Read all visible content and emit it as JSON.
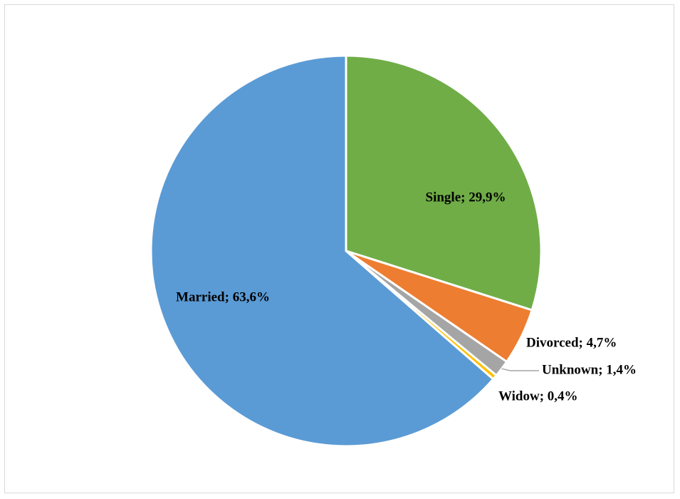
{
  "chart_data": {
    "type": "pie",
    "title": "",
    "slices": [
      {
        "category": "Single",
        "value": 29.9,
        "label": "Single; 29,9%",
        "color": "#70AD47",
        "label_placement": "inside"
      },
      {
        "category": "Divorced",
        "value": 4.7,
        "label": "Divorced; 4,7%",
        "color": "#ED7D31",
        "label_placement": "outside"
      },
      {
        "category": "Unknown",
        "value": 1.4,
        "label": "Unknown; 1,4%",
        "color": "#A5A5A5",
        "label_placement": "outside",
        "leader_line": true
      },
      {
        "category": "Widow",
        "value": 0.4,
        "label": "Widow; 0,4%",
        "color": "#FFC000",
        "label_placement": "outside"
      },
      {
        "category": "Married",
        "value": 63.6,
        "label": "Married; 63,6%",
        "color": "#5B9BD5",
        "label_placement": "inside"
      }
    ],
    "start_angle": "12 o'clock",
    "direction": "clockwise",
    "legend": "none"
  }
}
